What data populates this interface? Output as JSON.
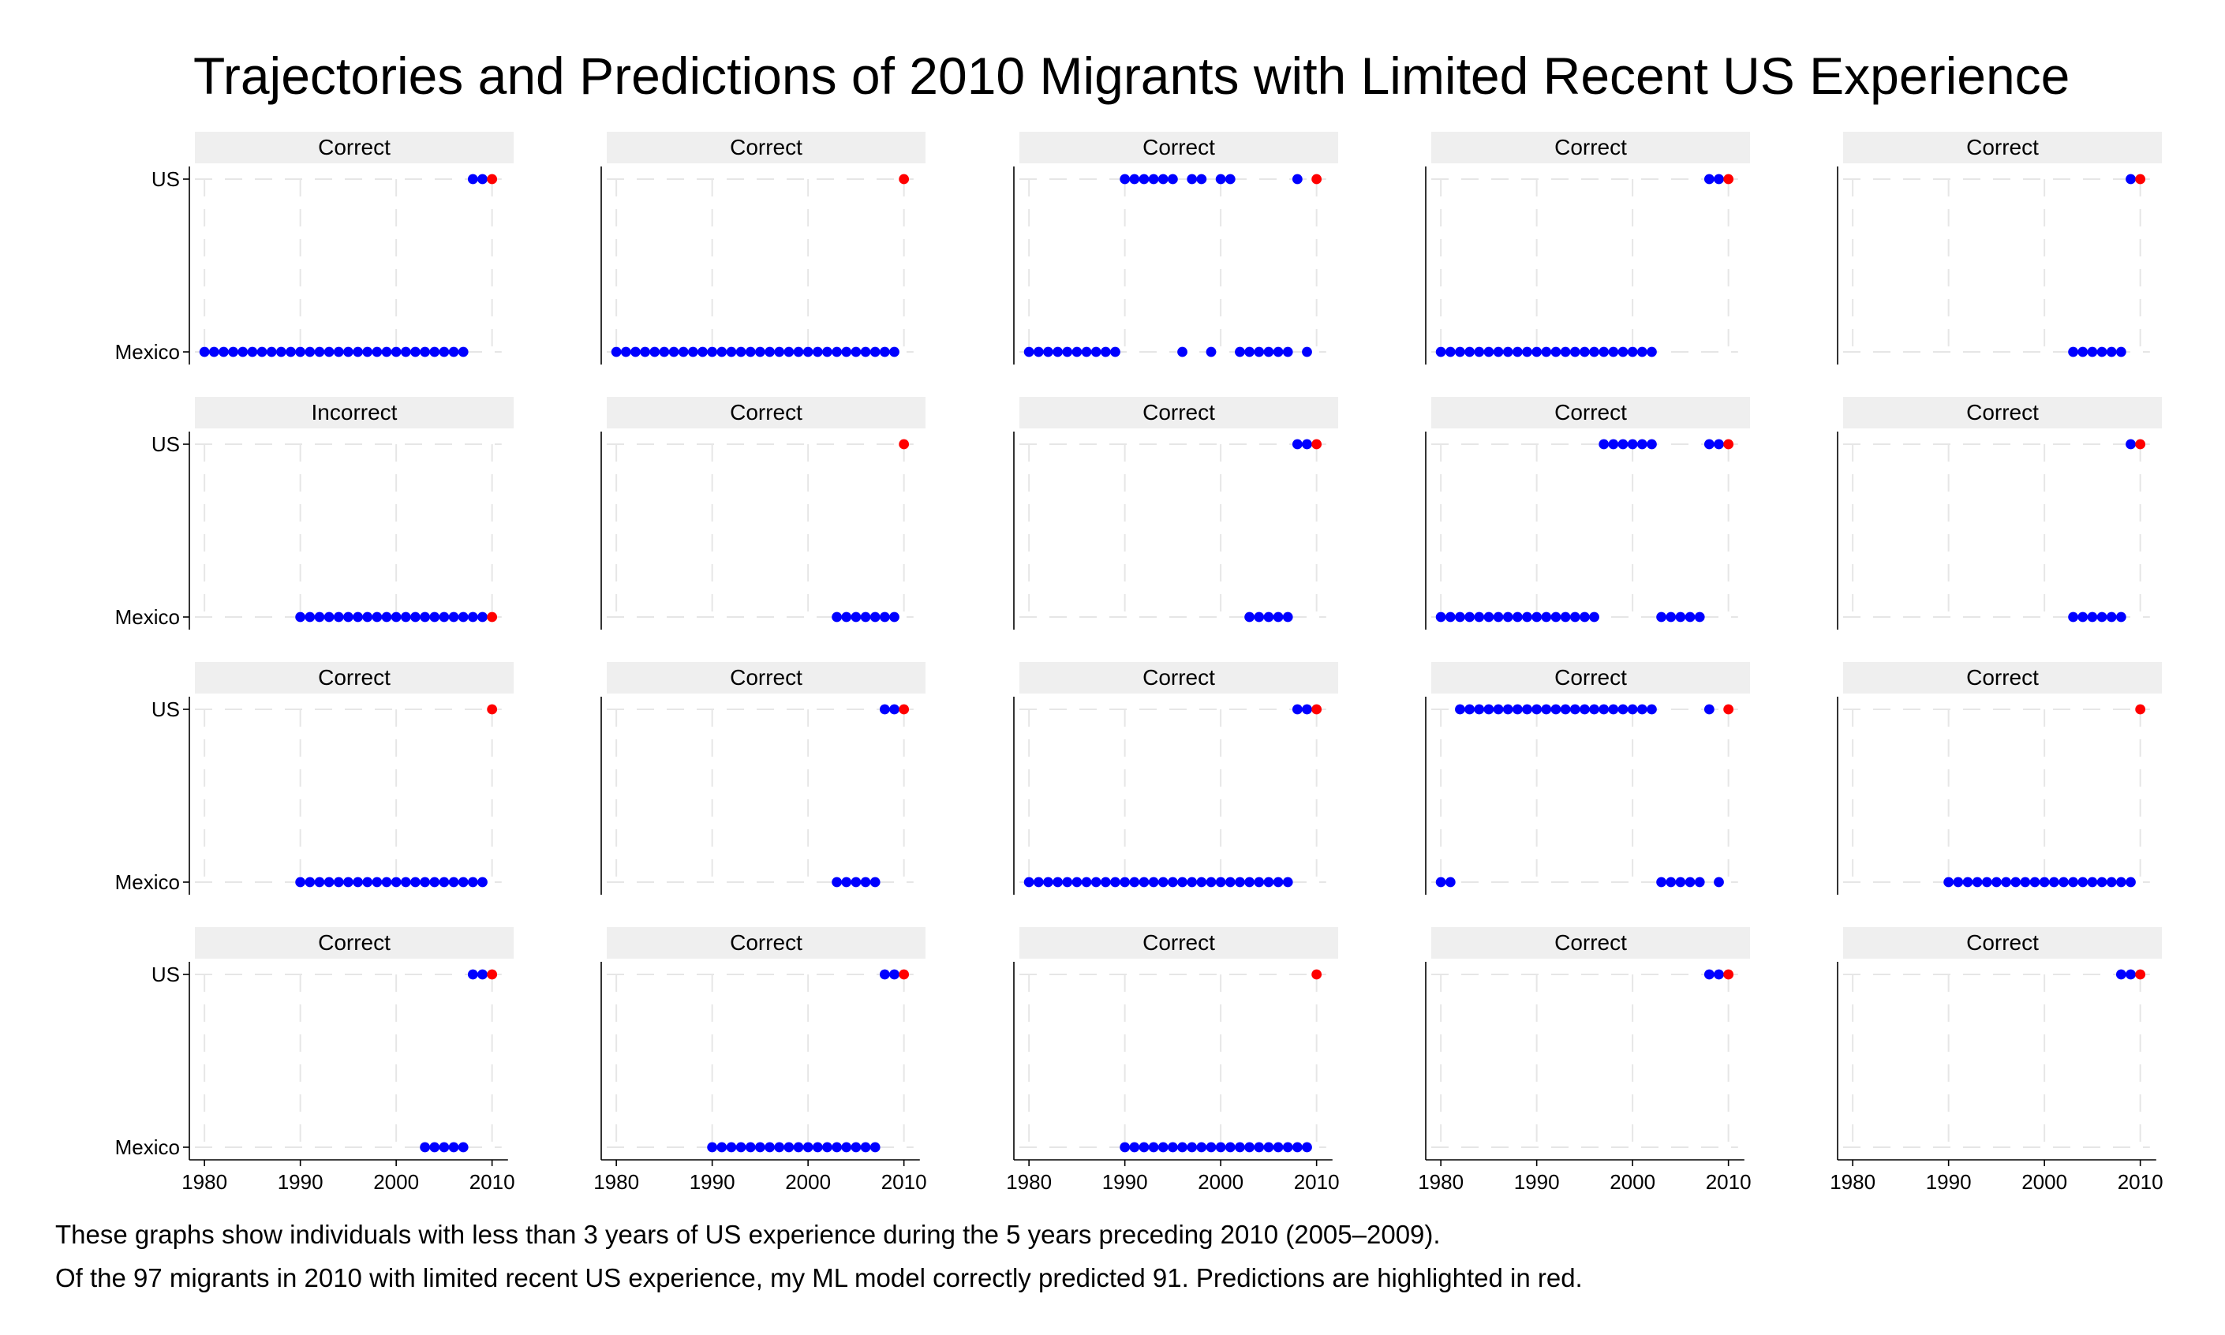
{
  "title": "Trajectories and Predictions of 2010 Migrants with Limited Recent US Experience",
  "notes": [
    "These graphs show individuals with less than 3 years of US experience during the 5 years preceding 2010 (2005–2009).",
    "Of the 97 migrants in 2010 with limited recent US experience, my ML model correctly predicted 91. Predictions are highlighted in red."
  ],
  "colors": {
    "observed": "#0000ff",
    "prediction": "#ff0000",
    "header_bg": "#efefef",
    "grid": "#e6e6e6"
  },
  "chart_data": {
    "type": "scatter",
    "layout": "small-multiples 4x5",
    "xlim": [
      1979,
      2011
    ],
    "xticks": [
      1980,
      1990,
      2000,
      2010
    ],
    "ycategories": [
      "Mexico",
      "US"
    ],
    "panels": [
      {
        "label": "Correct",
        "us": [
          2008,
          2009
        ],
        "mexico": [
          1980,
          1981,
          1982,
          1983,
          1984,
          1985,
          1986,
          1987,
          1988,
          1989,
          1990,
          1991,
          1992,
          1993,
          1994,
          1995,
          1996,
          1997,
          1998,
          1999,
          2000,
          2001,
          2002,
          2003,
          2004,
          2005,
          2006,
          2007
        ],
        "prediction": {
          "year": 2010,
          "state": "US"
        }
      },
      {
        "label": "Correct",
        "us": [],
        "mexico": [
          1980,
          1981,
          1982,
          1983,
          1984,
          1985,
          1986,
          1987,
          1988,
          1989,
          1990,
          1991,
          1992,
          1993,
          1994,
          1995,
          1996,
          1997,
          1998,
          1999,
          2000,
          2001,
          2002,
          2003,
          2004,
          2005,
          2006,
          2007,
          2008,
          2009
        ],
        "prediction": {
          "year": 2010,
          "state": "US"
        }
      },
      {
        "label": "Correct",
        "us": [
          1990,
          1991,
          1992,
          1993,
          1994,
          1995,
          1997,
          1998,
          2000,
          2001,
          2008
        ],
        "mexico": [
          1980,
          1981,
          1982,
          1983,
          1984,
          1985,
          1986,
          1987,
          1988,
          1989,
          1996,
          1999,
          2002,
          2003,
          2004,
          2005,
          2006,
          2007,
          2009
        ],
        "prediction": {
          "year": 2010,
          "state": "US"
        }
      },
      {
        "label": "Correct",
        "us": [
          2008,
          2009
        ],
        "mexico": [
          1980,
          1981,
          1982,
          1983,
          1984,
          1985,
          1986,
          1987,
          1988,
          1989,
          1990,
          1991,
          1992,
          1993,
          1994,
          1995,
          1996,
          1997,
          1998,
          1999,
          2000,
          2001,
          2002
        ],
        "prediction": {
          "year": 2010,
          "state": "US"
        }
      },
      {
        "label": "Correct",
        "us": [
          2009
        ],
        "mexico": [
          2003,
          2004,
          2005,
          2006,
          2007,
          2008
        ],
        "prediction": {
          "year": 2010,
          "state": "US"
        }
      },
      {
        "label": "Incorrect",
        "us": [],
        "mexico": [
          1990,
          1991,
          1992,
          1993,
          1994,
          1995,
          1996,
          1997,
          1998,
          1999,
          2000,
          2001,
          2002,
          2003,
          2004,
          2005,
          2006,
          2007,
          2008,
          2009
        ],
        "prediction": {
          "year": 2010,
          "state": "Mexico"
        }
      },
      {
        "label": "Correct",
        "us": [],
        "mexico": [
          2003,
          2004,
          2005,
          2006,
          2007,
          2008,
          2009
        ],
        "prediction": {
          "year": 2010,
          "state": "US"
        }
      },
      {
        "label": "Correct",
        "us": [
          2008,
          2009
        ],
        "mexico": [
          2003,
          2004,
          2005,
          2006,
          2007
        ],
        "prediction": {
          "year": 2010,
          "state": "US"
        }
      },
      {
        "label": "Correct",
        "us": [
          1997,
          1998,
          1999,
          2000,
          2001,
          2002,
          2008,
          2009
        ],
        "mexico": [
          1980,
          1981,
          1982,
          1983,
          1984,
          1985,
          1986,
          1987,
          1988,
          1989,
          1990,
          1991,
          1992,
          1993,
          1994,
          1995,
          1996,
          2003,
          2004,
          2005,
          2006,
          2007
        ],
        "prediction": {
          "year": 2010,
          "state": "US"
        }
      },
      {
        "label": "Correct",
        "us": [
          2009
        ],
        "mexico": [
          2003,
          2004,
          2005,
          2006,
          2007,
          2008
        ],
        "prediction": {
          "year": 2010,
          "state": "US"
        }
      },
      {
        "label": "Correct",
        "us": [],
        "mexico": [
          1990,
          1991,
          1992,
          1993,
          1994,
          1995,
          1996,
          1997,
          1998,
          1999,
          2000,
          2001,
          2002,
          2003,
          2004,
          2005,
          2006,
          2007,
          2008,
          2009
        ],
        "prediction": {
          "year": 2010,
          "state": "US"
        }
      },
      {
        "label": "Correct",
        "us": [
          2008,
          2009
        ],
        "mexico": [
          2003,
          2004,
          2005,
          2006,
          2007
        ],
        "prediction": {
          "year": 2010,
          "state": "US"
        }
      },
      {
        "label": "Correct",
        "us": [
          2008,
          2009
        ],
        "mexico": [
          1980,
          1981,
          1982,
          1983,
          1984,
          1985,
          1986,
          1987,
          1988,
          1989,
          1990,
          1991,
          1992,
          1993,
          1994,
          1995,
          1996,
          1997,
          1998,
          1999,
          2000,
          2001,
          2002,
          2003,
          2004,
          2005,
          2006,
          2007
        ],
        "prediction": {
          "year": 2010,
          "state": "US"
        }
      },
      {
        "label": "Correct",
        "us": [
          1982,
          1983,
          1984,
          1985,
          1986,
          1987,
          1988,
          1989,
          1990,
          1991,
          1992,
          1993,
          1994,
          1995,
          1996,
          1997,
          1998,
          1999,
          2000,
          2001,
          2002,
          2008
        ],
        "mexico": [
          1980,
          1981,
          2003,
          2004,
          2005,
          2006,
          2007,
          2009
        ],
        "prediction": {
          "year": 2010,
          "state": "US"
        }
      },
      {
        "label": "Correct",
        "us": [],
        "mexico": [
          1990,
          1991,
          1992,
          1993,
          1994,
          1995,
          1996,
          1997,
          1998,
          1999,
          2000,
          2001,
          2002,
          2003,
          2004,
          2005,
          2006,
          2007,
          2008,
          2009
        ],
        "prediction": {
          "year": 2010,
          "state": "US"
        }
      },
      {
        "label": "Correct",
        "us": [
          2008,
          2009
        ],
        "mexico": [
          2003,
          2004,
          2005,
          2006,
          2007
        ],
        "prediction": {
          "year": 2010,
          "state": "US"
        }
      },
      {
        "label": "Correct",
        "us": [
          2008,
          2009
        ],
        "mexico": [
          1990,
          1991,
          1992,
          1993,
          1994,
          1995,
          1996,
          1997,
          1998,
          1999,
          2000,
          2001,
          2002,
          2003,
          2004,
          2005,
          2006,
          2007
        ],
        "prediction": {
          "year": 2010,
          "state": "US"
        }
      },
      {
        "label": "Correct",
        "us": [],
        "mexico": [
          1990,
          1991,
          1992,
          1993,
          1994,
          1995,
          1996,
          1997,
          1998,
          1999,
          2000,
          2001,
          2002,
          2003,
          2004,
          2005,
          2006,
          2007,
          2008,
          2009
        ],
        "prediction": {
          "year": 2010,
          "state": "US"
        }
      },
      {
        "label": "Correct",
        "us": [
          2008,
          2009
        ],
        "mexico": [],
        "prediction": {
          "year": 2010,
          "state": "US"
        }
      },
      {
        "label": "Correct",
        "us": [
          2008,
          2009
        ],
        "mexico": [],
        "prediction": {
          "year": 2010,
          "state": "US"
        }
      }
    ]
  }
}
